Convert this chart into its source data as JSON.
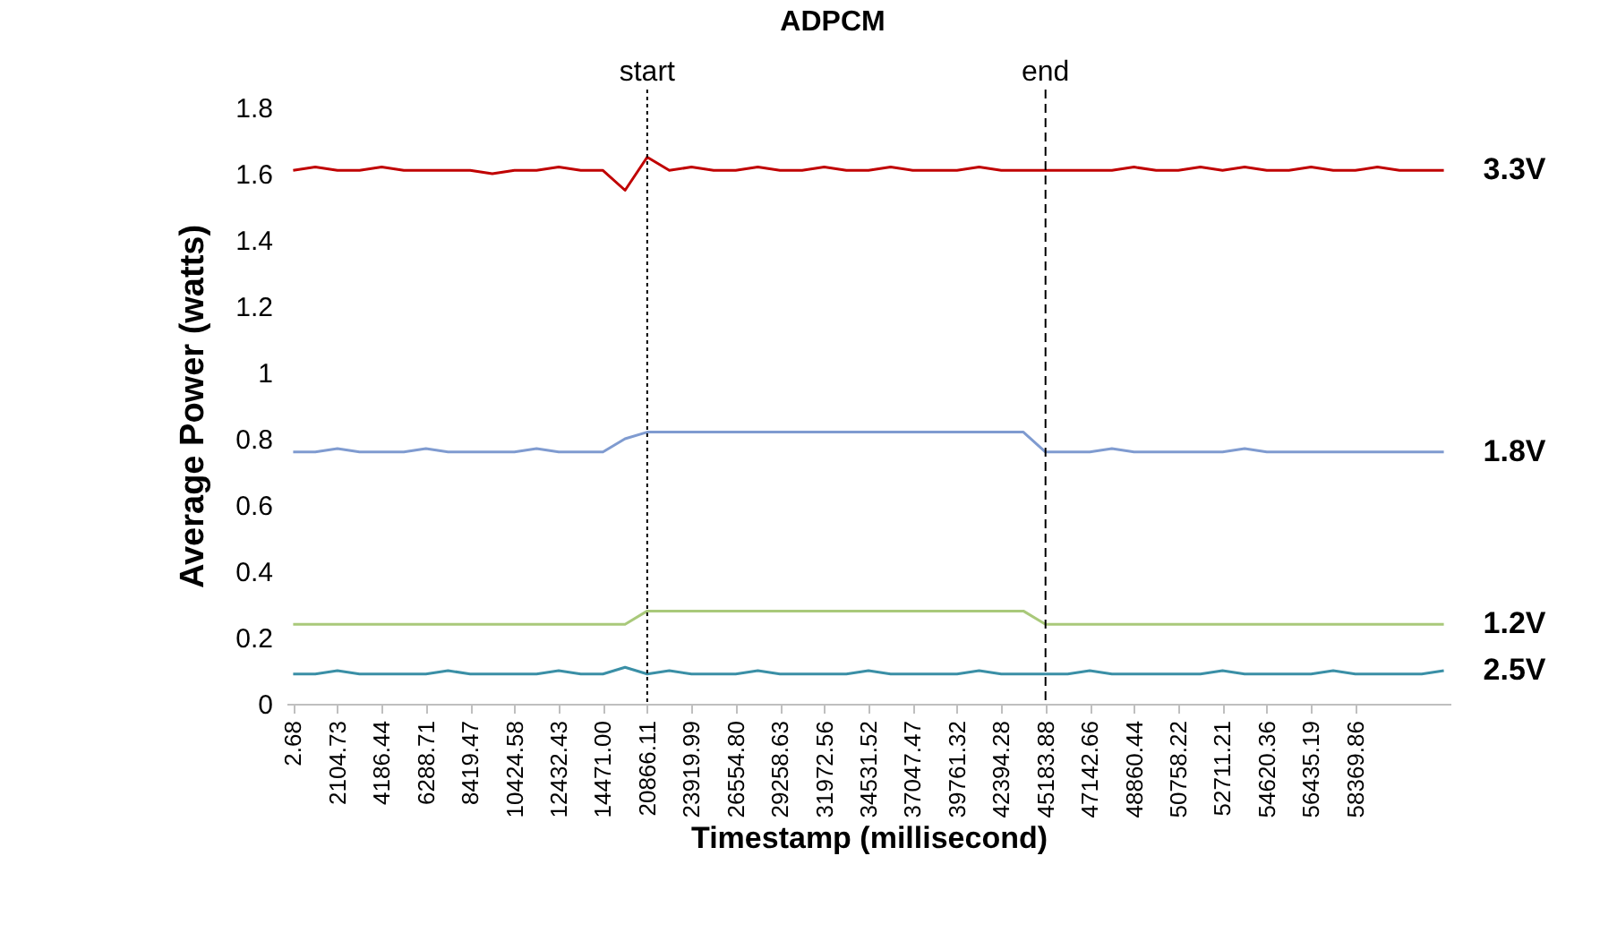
{
  "chart_data": {
    "type": "line",
    "title": "ADPCM",
    "xlabel": "Timestamp (millisecond)",
    "ylabel": "Average Power (watts)",
    "categories": [
      "2.68",
      null,
      "2104.73",
      null,
      "4186.44",
      null,
      "6288.71",
      null,
      "8419.47",
      null,
      "10424.58",
      null,
      "12432.43",
      null,
      "14471.00",
      null,
      "20866.11",
      null,
      "23919.99",
      null,
      "26554.80",
      null,
      "29258.63",
      null,
      "31972.56",
      null,
      "34531.52",
      null,
      "37047.47",
      null,
      "39761.32",
      null,
      "42394.28",
      null,
      "45183.88",
      null,
      "47142.66",
      null,
      "48860.44",
      null,
      "50758.22",
      null,
      "52711.21",
      null,
      "54620.36",
      null,
      "56435.19",
      null,
      "58369.86",
      null,
      null,
      null,
      null
    ],
    "series": [
      {
        "name": "3.3V",
        "color": "#c00000",
        "values": [
          1.61,
          1.62,
          1.61,
          1.61,
          1.62,
          1.61,
          1.61,
          1.61,
          1.61,
          1.6,
          1.61,
          1.61,
          1.62,
          1.61,
          1.61,
          1.55,
          1.65,
          1.61,
          1.62,
          1.61,
          1.61,
          1.62,
          1.61,
          1.61,
          1.62,
          1.61,
          1.61,
          1.62,
          1.61,
          1.61,
          1.61,
          1.62,
          1.61,
          1.61,
          1.61,
          1.61,
          1.61,
          1.61,
          1.62,
          1.61,
          1.61,
          1.62,
          1.61,
          1.62,
          1.61,
          1.61,
          1.62,
          1.61,
          1.61,
          1.62,
          1.61,
          1.61,
          1.61
        ]
      },
      {
        "name": "1.8V",
        "color": "#7f9bd0",
        "values": [
          0.76,
          0.76,
          0.77,
          0.76,
          0.76,
          0.76,
          0.77,
          0.76,
          0.76,
          0.76,
          0.76,
          0.77,
          0.76,
          0.76,
          0.76,
          0.8,
          0.82,
          0.82,
          0.82,
          0.82,
          0.82,
          0.82,
          0.82,
          0.82,
          0.82,
          0.82,
          0.82,
          0.82,
          0.82,
          0.82,
          0.82,
          0.82,
          0.82,
          0.82,
          0.76,
          0.76,
          0.76,
          0.77,
          0.76,
          0.76,
          0.76,
          0.76,
          0.76,
          0.77,
          0.76,
          0.76,
          0.76,
          0.76,
          0.76,
          0.76,
          0.76,
          0.76,
          0.76
        ]
      },
      {
        "name": "1.2V",
        "color": "#a9c97a",
        "values": [
          0.24,
          0.24,
          0.24,
          0.24,
          0.24,
          0.24,
          0.24,
          0.24,
          0.24,
          0.24,
          0.24,
          0.24,
          0.24,
          0.24,
          0.24,
          0.24,
          0.28,
          0.28,
          0.28,
          0.28,
          0.28,
          0.28,
          0.28,
          0.28,
          0.28,
          0.28,
          0.28,
          0.28,
          0.28,
          0.28,
          0.28,
          0.28,
          0.28,
          0.28,
          0.24,
          0.24,
          0.24,
          0.24,
          0.24,
          0.24,
          0.24,
          0.24,
          0.24,
          0.24,
          0.24,
          0.24,
          0.24,
          0.24,
          0.24,
          0.24,
          0.24,
          0.24,
          0.24
        ]
      },
      {
        "name": "2.5V",
        "color": "#3a8fa6",
        "values": [
          0.09,
          0.09,
          0.1,
          0.09,
          0.09,
          0.09,
          0.09,
          0.1,
          0.09,
          0.09,
          0.09,
          0.09,
          0.1,
          0.09,
          0.09,
          0.11,
          0.09,
          0.1,
          0.09,
          0.09,
          0.09,
          0.1,
          0.09,
          0.09,
          0.09,
          0.09,
          0.1,
          0.09,
          0.09,
          0.09,
          0.09,
          0.1,
          0.09,
          0.09,
          0.09,
          0.09,
          0.1,
          0.09,
          0.09,
          0.09,
          0.09,
          0.09,
          0.1,
          0.09,
          0.09,
          0.09,
          0.09,
          0.1,
          0.09,
          0.09,
          0.09,
          0.09,
          0.1
        ]
      }
    ],
    "ylim": [
      0,
      1.8
    ],
    "yticks": [
      0,
      0.2,
      0.4,
      0.6,
      0.8,
      1,
      1.2,
      1.4,
      1.6,
      1.8
    ],
    "grid": false,
    "legend": false,
    "ref_lines": [
      {
        "axis": "x",
        "value": "20866.11",
        "label": "start",
        "line_style": "dotted"
      },
      {
        "axis": "x",
        "value": "45183.88",
        "label": "end",
        "line_style": "dashed"
      }
    ]
  }
}
